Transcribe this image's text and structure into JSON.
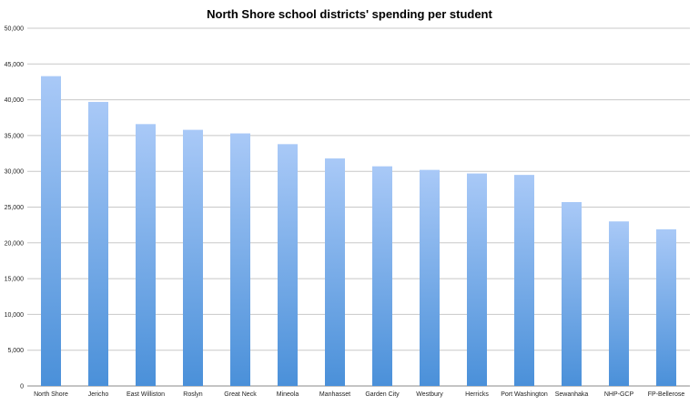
{
  "chart_data": {
    "type": "bar",
    "title": "North Shore school districts' spending per student",
    "xlabel": "",
    "ylabel": "",
    "categories": [
      "North Shore",
      "Jericho",
      "East Williston",
      "Roslyn",
      "Great Neck",
      "Mineola",
      "Manhasset",
      "Garden City",
      "Westbury",
      "Herricks",
      "Port Washington",
      "Sewanhaka",
      "NHP-GCP",
      "FP-Bellerose"
    ],
    "values": [
      43300,
      39700,
      36600,
      35800,
      35300,
      33800,
      31800,
      30700,
      30200,
      29700,
      29500,
      25700,
      23000,
      21900
    ],
    "ylim": [
      0,
      50000
    ],
    "yticks": [
      "0",
      "5,000",
      "10,000",
      "15,000",
      "20,000",
      "25,000",
      "30,000",
      "35,000",
      "40,000",
      "45,000",
      "50,000"
    ],
    "ytick_values": [
      0,
      5000,
      10000,
      15000,
      20000,
      25000,
      30000,
      35000,
      40000,
      45000,
      50000
    ],
    "grid": true,
    "legend": "none",
    "colors": {
      "bar_top": "#a9c9f7",
      "bar_bottom": "#4a90d9",
      "grid": "#c8c8c8"
    }
  }
}
